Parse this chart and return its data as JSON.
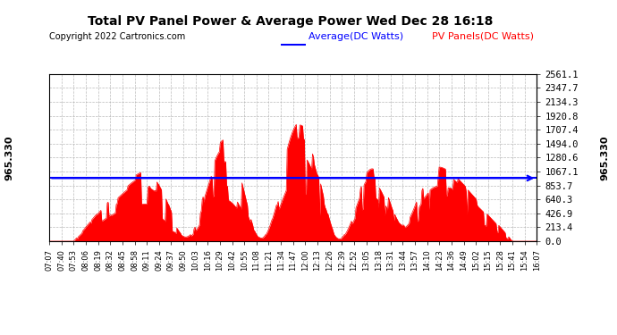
{
  "title": "Total PV Panel Power & Average Power Wed Dec 28 16:18",
  "copyright": "Copyright 2022 Cartronics.com",
  "legend_avg": "Average(DC Watts)",
  "legend_pv": "PV Panels(DC Watts)",
  "avg_value": 965.33,
  "ymax": 2561.1,
  "ymin": 0.0,
  "yticks": [
    0.0,
    213.4,
    426.9,
    640.3,
    853.7,
    1067.1,
    1280.6,
    1494.0,
    1707.4,
    1920.8,
    2134.3,
    2347.7,
    2561.1
  ],
  "color_fill": "#FF0000",
  "color_avg_line": "#0000FF",
  "color_title": "#000000",
  "color_copyright": "#000000",
  "color_legend_avg": "#0000FF",
  "color_legend_pv": "#FF0000",
  "background_color": "#FFFFFF",
  "grid_color": "#AAAAAA",
  "left_label": "965.330",
  "right_label": "965.330",
  "xtick_labels": [
    "07:07",
    "07:40",
    "07:53",
    "08:06",
    "08:19",
    "08:32",
    "08:45",
    "08:58",
    "09:11",
    "09:24",
    "09:37",
    "09:50",
    "10:03",
    "10:16",
    "10:29",
    "10:42",
    "10:55",
    "11:08",
    "11:21",
    "11:34",
    "11:47",
    "12:00",
    "12:13",
    "12:26",
    "12:39",
    "12:52",
    "13:05",
    "13:18",
    "13:31",
    "13:44",
    "13:57",
    "14:10",
    "14:23",
    "14:36",
    "14:49",
    "15:02",
    "15:15",
    "15:28",
    "15:41",
    "15:54",
    "16:07"
  ]
}
